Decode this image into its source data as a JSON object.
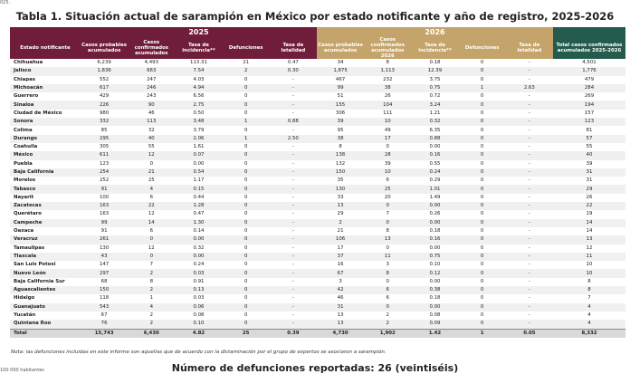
{
  "corner_top": "025.",
  "title": "Tabla 1. Situación actual de sarampión en México por estado notificante y año de registro, 2025-2026",
  "groups": [
    "2025",
    "2026"
  ],
  "columns": [
    "Estado notificante",
    "Casos probables acumulados",
    "Casos confirmados acumulados",
    "Tasa de incidencia**",
    "Defunciones",
    "Tasa de letalidad",
    "Casos probables acumulados",
    "Casos confirmados acumulados 2026",
    "Tasa de incidencia**",
    "Defunciones",
    "Tasa de letalidad",
    "Total casos confirmados acumulados 2025-2026"
  ],
  "rows": [
    [
      "Chihuahua",
      "6,239",
      "4,493",
      "113.31",
      "21",
      "0.47",
      "34",
      "8",
      "0.18",
      "0",
      "-",
      "4,501"
    ],
    [
      "Jalisco",
      "1,836",
      "663",
      "7.54",
      "2",
      "0.30",
      "1,875",
      "1,113",
      "12.39",
      "0",
      "-",
      "1,776"
    ],
    [
      "Chiapas",
      "552",
      "247",
      "4.03",
      "0",
      "-",
      "467",
      "232",
      "3.75",
      "0",
      "-",
      "479"
    ],
    [
      "Michoacán",
      "617",
      "246",
      "4.94",
      "0",
      "-",
      "99",
      "38",
      "0.75",
      "1",
      "2.63",
      "284"
    ],
    [
      "Guerrero",
      "429",
      "243",
      "6.56",
      "0",
      "-",
      "51",
      "26",
      "0.72",
      "0",
      "-",
      "269"
    ],
    [
      "Sinaloa",
      "226",
      "90",
      "2.75",
      "0",
      "-",
      "155",
      "104",
      "3.24",
      "0",
      "-",
      "194"
    ],
    [
      "Ciudad de México",
      "980",
      "46",
      "0.50",
      "0",
      "-",
      "306",
      "111",
      "1.21",
      "0",
      "-",
      "157"
    ],
    [
      "Sonora",
      "332",
      "113",
      "3.48",
      "1",
      "0.88",
      "39",
      "10",
      "0.32",
      "0",
      "-",
      "123"
    ],
    [
      "Colima",
      "85",
      "32",
      "3.79",
      "0",
      "-",
      "95",
      "49",
      "6.35",
      "0",
      "-",
      "81"
    ],
    [
      "Durango",
      "295",
      "40",
      "2.06",
      "1",
      "2.50",
      "38",
      "17",
      "0.88",
      "0",
      "-",
      "57"
    ],
    [
      "Coahuila",
      "305",
      "55",
      "1.61",
      "0",
      "-",
      "8",
      "0",
      "0.00",
      "0",
      "-",
      "55"
    ],
    [
      "México",
      "611",
      "12",
      "0.07",
      "0",
      "-",
      "138",
      "28",
      "0.16",
      "0",
      "-",
      "40"
    ],
    [
      "Puebla",
      "123",
      "0",
      "0.00",
      "0",
      "-",
      "132",
      "39",
      "0.55",
      "0",
      "-",
      "39"
    ],
    [
      "Baja California",
      "254",
      "21",
      "0.54",
      "0",
      "-",
      "150",
      "10",
      "0.24",
      "0",
      "-",
      "31"
    ],
    [
      "Morelos",
      "252",
      "25",
      "1.17",
      "0",
      "-",
      "35",
      "6",
      "0.29",
      "0",
      "-",
      "31"
    ],
    [
      "Tabasco",
      "91",
      "4",
      "0.15",
      "0",
      "-",
      "130",
      "25",
      "1.01",
      "0",
      "-",
      "29"
    ],
    [
      "Nayarit",
      "100",
      "6",
      "0.44",
      "0",
      "-",
      "33",
      "20",
      "1.49",
      "0",
      "-",
      "26"
    ],
    [
      "Zacatecas",
      "163",
      "22",
      "1.28",
      "0",
      "-",
      "13",
      "0",
      "0.00",
      "0",
      "-",
      "22"
    ],
    [
      "Querétaro",
      "163",
      "12",
      "0.47",
      "0",
      "-",
      "29",
      "7",
      "0.26",
      "0",
      "-",
      "19"
    ],
    [
      "Campeche",
      "99",
      "14",
      "1.30",
      "0",
      "-",
      "2",
      "0",
      "0.00",
      "0",
      "-",
      "14"
    ],
    [
      "Oaxaca",
      "91",
      "6",
      "0.14",
      "0",
      "-",
      "21",
      "8",
      "0.18",
      "0",
      "-",
      "14"
    ],
    [
      "Veracruz",
      "261",
      "0",
      "0.00",
      "0",
      "-",
      "106",
      "13",
      "0.16",
      "0",
      "-",
      "13"
    ],
    [
      "Tamaulipas",
      "130",
      "12",
      "0.32",
      "0",
      "-",
      "17",
      "0",
      "0.00",
      "0",
      "-",
      "12"
    ],
    [
      "Tlaxcala",
      "43",
      "0",
      "0.00",
      "0",
      "-",
      "37",
      "11",
      "0.75",
      "0",
      "-",
      "11"
    ],
    [
      "San Luis Potosí",
      "147",
      "7",
      "0.24",
      "0",
      "-",
      "16",
      "3",
      "0.10",
      "0",
      "-",
      "10"
    ],
    [
      "Nuevo León",
      "297",
      "2",
      "0.03",
      "0",
      "-",
      "67",
      "8",
      "0.12",
      "0",
      "-",
      "10"
    ],
    [
      "Baja California Sur",
      "68",
      "8",
      "0.91",
      "0",
      "-",
      "3",
      "0",
      "0.00",
      "0",
      "-",
      "8"
    ],
    [
      "Aguascalientes",
      "150",
      "2",
      "0.13",
      "0",
      "-",
      "42",
      "6",
      "0.38",
      "0",
      "-",
      "8"
    ],
    [
      "Hidalgo",
      "118",
      "1",
      "0.03",
      "0",
      "-",
      "46",
      "6",
      "0.18",
      "0",
      "-",
      "7"
    ],
    [
      "Guanajuato",
      "543",
      "4",
      "0.06",
      "0",
      "-",
      "31",
      "0",
      "0.00",
      "0",
      "-",
      "4"
    ],
    [
      "Yucatán",
      "67",
      "2",
      "0.08",
      "0",
      "-",
      "13",
      "2",
      "0.08",
      "0",
      "-",
      "4"
    ],
    [
      "Quintana Roo",
      "76",
      "2",
      "0.10",
      "0",
      "-",
      "13",
      "2",
      "0.09",
      "0",
      "-",
      "4"
    ]
  ],
  "total": [
    "Total",
    "15,743",
    "6,430",
    "4.82",
    "25",
    "0.39",
    "4,730",
    "1,902",
    "1.42",
    "1",
    "0.05",
    "8,332"
  ],
  "note": "Nota: las defunciones incluidas en este informe son aquellas que de acuerdo con la dictaminación por el grupo de expertos se asociaron a sarampión.",
  "corner_bottom": "100 000 habitantes",
  "footer": "Número de defunciones reportadas: 26 (veintiséis)"
}
